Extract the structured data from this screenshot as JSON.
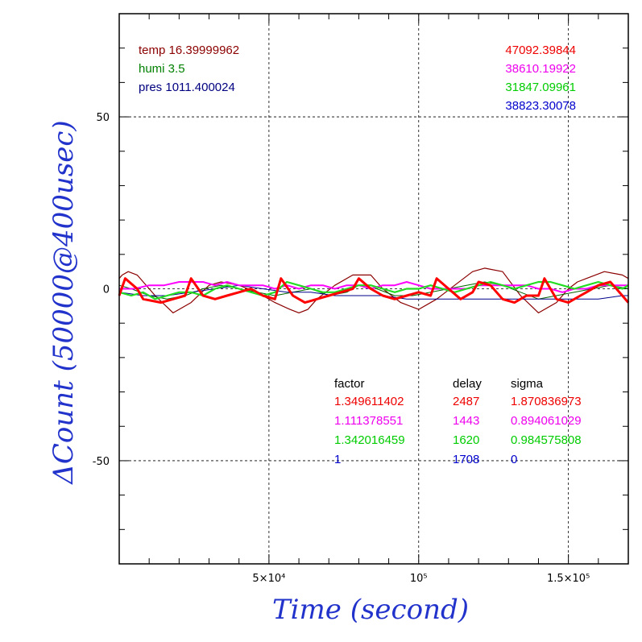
{
  "chart_data": {
    "type": "line",
    "xlabel": "Time (second)",
    "ylabel": "ΔCount (50000@400usec)",
    "xlim": [
      0,
      170000
    ],
    "ylim": [
      -80,
      80
    ],
    "x_ticks": [
      {
        "value": 50000,
        "label": "5×10⁴"
      },
      {
        "value": 100000,
        "label": "10⁵"
      },
      {
        "value": 150000,
        "label": "1.5×10⁵"
      }
    ],
    "y_ticks": [
      {
        "value": 50,
        "label": "50"
      },
      {
        "value": 0,
        "label": "0"
      },
      {
        "value": -50,
        "label": "-50"
      }
    ],
    "grid": true,
    "environment": [
      {
        "text": "temp 16.39999962",
        "color": "#8b0000"
      },
      {
        "text": "humi 3.5",
        "color": "#008000"
      },
      {
        "text": "pres 1011.400024",
        "color": "#000080"
      }
    ],
    "totals": [
      {
        "text": "47092.39844",
        "color": "#ee0000"
      },
      {
        "text": "38610.19922",
        "color": "#ee00ee"
      },
      {
        "text": "31847.09961",
        "color": "#00cc00"
      },
      {
        "text": "38823.30078",
        "color": "#0000cc"
      }
    ],
    "fit_table": {
      "headers": [
        "factor",
        "delay",
        "sigma"
      ],
      "rows": [
        {
          "factor": "1.349611402",
          "delay": "2487",
          "sigma": "1.870836973",
          "color": "#ee0000"
        },
        {
          "factor": "1.111378551",
          "delay": "1443",
          "sigma": "0.894061029",
          "color": "#ee00ee"
        },
        {
          "factor": "1.342016459",
          "delay": "1620",
          "sigma": "0.984575808",
          "color": "#00cc00"
        },
        {
          "factor": "1",
          "delay": "1708",
          "sigma": "0",
          "color": "#0000cc"
        }
      ]
    },
    "series": [
      {
        "color": "#8b0000",
        "width": 1.2,
        "x": [
          0,
          1000,
          3000,
          6000,
          12000,
          18000,
          24000,
          30000,
          34000,
          40000,
          46000,
          52000,
          57000,
          60000,
          63000,
          66000,
          72000,
          78000,
          84000,
          88000,
          94000,
          100000,
          106000,
          112000,
          118000,
          122000,
          128000,
          134000,
          140000,
          146000,
          150000,
          153000,
          156000,
          162000,
          168000,
          170000
        ],
        "y": [
          3,
          4,
          5,
          4,
          -2,
          -7,
          -4,
          1,
          2,
          1,
          -1,
          -4,
          -6,
          -7,
          -6,
          -3,
          1,
          4,
          4,
          0,
          -4,
          -6,
          -3,
          1,
          5,
          6,
          5,
          -2,
          -7,
          -4,
          0,
          2,
          3,
          5,
          4,
          3
        ]
      },
      {
        "color": "#006400",
        "width": 1.0,
        "x": [
          0,
          4000,
          10000,
          16000,
          22000,
          28000,
          34000,
          40000,
          46000,
          52000,
          58000,
          64000,
          70000,
          76000,
          80000,
          86000,
          92000,
          98000,
          104000,
          110000,
          116000,
          122000,
          128000,
          134000,
          140000,
          146000,
          152000,
          158000,
          164000,
          170000
        ],
        "y": [
          1,
          0,
          -2,
          -3,
          -2,
          0,
          1,
          0,
          -1,
          -2,
          -1,
          0,
          -2,
          -1,
          1,
          0,
          -2,
          -2,
          -1,
          0,
          1,
          2,
          1,
          -1,
          -3,
          -2,
          -1,
          0,
          1,
          0
        ]
      },
      {
        "color": "#00008b",
        "width": 1.0,
        "x": [
          0,
          8000,
          16000,
          24000,
          32000,
          40000,
          48000,
          56000,
          64000,
          72000,
          80000,
          88000,
          96000,
          104000,
          112000,
          120000,
          128000,
          136000,
          144000,
          152000,
          160000,
          168000,
          170000
        ],
        "y": [
          -1,
          -2,
          -2,
          -1,
          0,
          1,
          0,
          -1,
          -1,
          -2,
          -2,
          -2,
          -3,
          -3,
          -3,
          -3,
          -3,
          -3,
          -3,
          -3,
          -3,
          -2,
          -2
        ]
      },
      {
        "color": "#ff00ff",
        "width": 2.0,
        "x": [
          0,
          5000,
          10000,
          15000,
          20000,
          24000,
          28000,
          32000,
          36000,
          40000,
          44000,
          48000,
          52000,
          56000,
          60000,
          64000,
          68000,
          72000,
          76000,
          80000,
          84000,
          88000,
          92000,
          96000,
          100000,
          104000,
          108000,
          112000,
          116000,
          120000,
          124000,
          128000,
          132000,
          136000,
          140000,
          144000,
          148000,
          152000,
          156000,
          160000,
          164000,
          168000,
          170000
        ],
        "y": [
          0,
          0,
          1,
          1,
          2,
          2,
          2,
          1,
          2,
          1,
          1,
          1,
          0,
          1,
          0,
          1,
          1,
          0,
          1,
          1,
          0,
          1,
          1,
          2,
          1,
          0,
          0,
          0,
          0,
          1,
          1,
          1,
          1,
          1,
          0,
          0,
          -1,
          0,
          0,
          1,
          1,
          1,
          1
        ]
      },
      {
        "color": "#22dd22",
        "width": 2.2,
        "x": [
          0,
          4000,
          8000,
          12000,
          16000,
          20000,
          24000,
          28000,
          32000,
          36000,
          40000,
          44000,
          48000,
          52000,
          56000,
          60000,
          64000,
          68000,
          72000,
          76000,
          80000,
          84000,
          88000,
          92000,
          96000,
          100000,
          104000,
          108000,
          112000,
          116000,
          120000,
          124000,
          128000,
          132000,
          136000,
          140000,
          144000,
          148000,
          152000,
          156000,
          160000,
          164000,
          168000,
          170000
        ],
        "y": [
          -1,
          -2,
          -1,
          -3,
          -2,
          -1,
          -1,
          -2,
          0,
          1,
          0,
          -1,
          -2,
          -1,
          2,
          1,
          0,
          -1,
          -1,
          0,
          1,
          1,
          0,
          -1,
          0,
          0,
          1,
          0,
          -1,
          0,
          1,
          2,
          1,
          0,
          1,
          2,
          2,
          1,
          0,
          1,
          2,
          1,
          0,
          1
        ]
      },
      {
        "color": "#ff0000",
        "width": 3.0,
        "x": [
          0,
          2000,
          6000,
          8000,
          14000,
          18000,
          22000,
          24000,
          28000,
          32000,
          36000,
          40000,
          44000,
          48000,
          52000,
          54000,
          58000,
          62000,
          66000,
          70000,
          74000,
          78000,
          80000,
          84000,
          88000,
          92000,
          96000,
          100000,
          104000,
          106000,
          110000,
          114000,
          118000,
          120000,
          124000,
          128000,
          132000,
          136000,
          140000,
          142000,
          146000,
          150000,
          154000,
          156000,
          160000,
          164000,
          168000,
          170000
        ],
        "y": [
          -2,
          3,
          0,
          -3,
          -4,
          -3,
          -2,
          3,
          -2,
          -3,
          -2,
          -1,
          0,
          -2,
          -3,
          3,
          -2,
          -4,
          -3,
          -2,
          -1,
          0,
          3,
          0,
          -2,
          -3,
          -2,
          -1,
          -2,
          3,
          0,
          -3,
          -1,
          2,
          1,
          -3,
          -4,
          -2,
          -2,
          3,
          -3,
          -4,
          -2,
          -1,
          1,
          2,
          -2,
          -4
        ]
      }
    ]
  }
}
